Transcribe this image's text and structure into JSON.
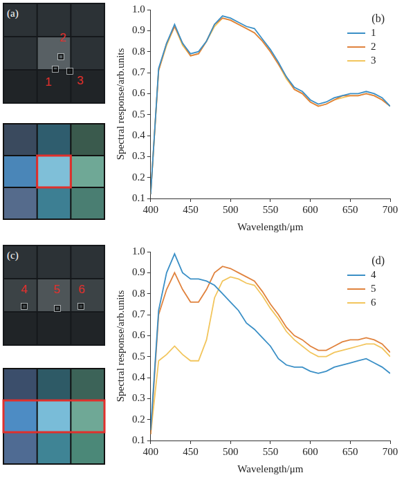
{
  "image_panels": [
    {
      "label": "(a)",
      "points": [
        "1",
        "2",
        "3"
      ]
    },
    {
      "label": "(c)",
      "points": [
        "4",
        "5",
        "6"
      ]
    }
  ],
  "chart_data": [
    {
      "type": "line",
      "annotation": "(b)",
      "x_label": "Wavelength/μm",
      "y_label": "Spectral response/arb.units",
      "x": [
        400,
        410,
        420,
        430,
        440,
        450,
        460,
        470,
        480,
        490,
        500,
        510,
        520,
        530,
        540,
        550,
        560,
        570,
        580,
        590,
        600,
        610,
        620,
        630,
        640,
        650,
        660,
        670,
        680,
        690,
        700
      ],
      "series": [
        {
          "name": "1",
          "color": "#3a8fc6",
          "values": [
            0.12,
            0.72,
            0.84,
            0.93,
            0.84,
            0.79,
            0.8,
            0.85,
            0.93,
            0.97,
            0.96,
            0.94,
            0.92,
            0.91,
            0.86,
            0.81,
            0.75,
            0.68,
            0.63,
            0.61,
            0.57,
            0.55,
            0.56,
            0.58,
            0.59,
            0.6,
            0.6,
            0.61,
            0.6,
            0.58,
            0.54
          ]
        },
        {
          "name": "2",
          "color": "#e0823d",
          "values": [
            0.12,
            0.71,
            0.84,
            0.92,
            0.84,
            0.78,
            0.79,
            0.85,
            0.93,
            0.96,
            0.95,
            0.93,
            0.91,
            0.89,
            0.85,
            0.8,
            0.74,
            0.68,
            0.62,
            0.6,
            0.56,
            0.54,
            0.55,
            0.57,
            0.59,
            0.59,
            0.59,
            0.6,
            0.59,
            0.57,
            0.54
          ]
        },
        {
          "name": "3",
          "color": "#f2c55c",
          "values": [
            0.12,
            0.71,
            0.83,
            0.92,
            0.83,
            0.78,
            0.79,
            0.85,
            0.92,
            0.96,
            0.95,
            0.93,
            0.91,
            0.89,
            0.85,
            0.8,
            0.74,
            0.67,
            0.62,
            0.6,
            0.56,
            0.54,
            0.55,
            0.57,
            0.58,
            0.59,
            0.59,
            0.6,
            0.59,
            0.57,
            0.54
          ]
        }
      ],
      "xlim": [
        400,
        700
      ],
      "xticks": [
        400,
        450,
        500,
        550,
        600,
        650,
        700
      ],
      "ylim": [
        0.1,
        1
      ],
      "yticks": [
        0.1,
        0.2,
        0.3,
        0.4,
        0.5,
        0.6,
        0.7,
        0.8,
        0.9,
        {
          "value": 1,
          "label": "1.0"
        }
      ],
      "legend": "upper right",
      "grid": false
    },
    {
      "type": "line",
      "annotation": "(d)",
      "x_label": "Wavelength/μm",
      "y_label": "Spectral response/arb.units",
      "x": [
        400,
        410,
        420,
        430,
        440,
        450,
        460,
        470,
        480,
        490,
        500,
        510,
        520,
        530,
        540,
        550,
        560,
        570,
        580,
        590,
        600,
        610,
        620,
        630,
        640,
        650,
        660,
        670,
        680,
        690,
        700
      ],
      "series": [
        {
          "name": "4",
          "color": "#3a8fc6",
          "values": [
            0.15,
            0.72,
            0.9,
            0.99,
            0.9,
            0.87,
            0.87,
            0.86,
            0.84,
            0.8,
            0.76,
            0.72,
            0.66,
            0.63,
            0.59,
            0.55,
            0.49,
            0.46,
            0.45,
            0.45,
            0.43,
            0.42,
            0.43,
            0.45,
            0.46,
            0.47,
            0.48,
            0.49,
            0.47,
            0.45,
            0.42
          ]
        },
        {
          "name": "5",
          "color": "#e0823d",
          "values": [
            0.13,
            0.7,
            0.82,
            0.9,
            0.82,
            0.76,
            0.76,
            0.82,
            0.9,
            0.93,
            0.92,
            0.9,
            0.88,
            0.86,
            0.81,
            0.75,
            0.7,
            0.64,
            0.6,
            0.58,
            0.55,
            0.53,
            0.53,
            0.55,
            0.57,
            0.58,
            0.58,
            0.59,
            0.58,
            0.56,
            0.52
          ]
        },
        {
          "name": "6",
          "color": "#f2c55c",
          "values": [
            0.13,
            0.48,
            0.51,
            0.55,
            0.51,
            0.48,
            0.48,
            0.58,
            0.78,
            0.86,
            0.88,
            0.87,
            0.85,
            0.84,
            0.79,
            0.73,
            0.68,
            0.62,
            0.58,
            0.55,
            0.52,
            0.5,
            0.5,
            0.52,
            0.53,
            0.54,
            0.55,
            0.56,
            0.56,
            0.54,
            0.5
          ]
        }
      ],
      "xlim": [
        400,
        700
      ],
      "xticks": [
        400,
        450,
        500,
        550,
        600,
        650,
        700
      ],
      "ylim": [
        0.1,
        1
      ],
      "yticks": [
        0.1,
        0.2,
        0.3,
        0.4,
        0.5,
        0.6,
        0.7,
        0.8,
        0.9,
        {
          "value": 1,
          "label": "1.0"
        }
      ],
      "legend": "upper right",
      "grid": false
    }
  ]
}
